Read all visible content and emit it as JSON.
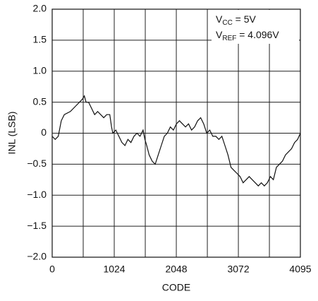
{
  "chart_data": {
    "type": "line",
    "xlabel": "CODE",
    "ylabel": "INL (LSB)",
    "annotations": [
      [
        "V",
        "CC",
        " = 5V"
      ],
      [
        "V",
        "REF",
        " = 4.096V"
      ]
    ],
    "xlim": [
      0,
      4095
    ],
    "ylim": [
      -2,
      2
    ],
    "xticks": [
      0,
      1024,
      2048,
      3072,
      4095
    ],
    "xminorticks": [
      512,
      1536,
      2560,
      3584
    ],
    "yticks": [
      {
        "value": -2,
        "label": "−2.0"
      },
      {
        "value": -1.5,
        "label": "−1.5"
      },
      {
        "value": -1,
        "label": "−1.0"
      },
      {
        "value": -0.5,
        "label": "−0.5"
      },
      0,
      0.5,
      {
        "value": 1,
        "label": "1.0"
      },
      1.5,
      {
        "value": 2,
        "label": "2.0"
      }
    ],
    "grid": true,
    "series": [
      {
        "color": "#111111",
        "x": [
          0,
          50,
          100,
          150,
          200,
          300,
          400,
          500,
          530,
          560,
          600,
          650,
          700,
          750,
          800,
          850,
          900,
          950,
          980,
          1000,
          1050,
          1100,
          1150,
          1200,
          1250,
          1300,
          1350,
          1400,
          1450,
          1500,
          1530,
          1560,
          1600,
          1650,
          1700,
          1750,
          1800,
          1850,
          1900,
          1950,
          2000,
          2050,
          2100,
          2150,
          2200,
          2250,
          2300,
          2350,
          2400,
          2450,
          2500,
          2550,
          2600,
          2650,
          2700,
          2750,
          2800,
          2850,
          2900,
          2950,
          3000,
          3050,
          3100,
          3150,
          3200,
          3250,
          3300,
          3350,
          3400,
          3450,
          3500,
          3550,
          3600,
          3650,
          3700,
          3750,
          3800,
          3850,
          3900,
          3950,
          4000,
          4050,
          4095
        ],
        "values": [
          -0.05,
          -0.1,
          -0.05,
          0.2,
          0.3,
          0.35,
          0.45,
          0.55,
          0.6,
          0.5,
          0.5,
          0.4,
          0.3,
          0.35,
          0.3,
          0.25,
          0.3,
          0.3,
          0.1,
          0.0,
          0.05,
          -0.05,
          -0.15,
          -0.2,
          -0.1,
          -0.15,
          -0.05,
          0.0,
          -0.05,
          0.05,
          -0.1,
          -0.2,
          -0.35,
          -0.45,
          -0.5,
          -0.35,
          -0.2,
          -0.05,
          0.0,
          0.1,
          0.05,
          0.15,
          0.2,
          0.15,
          0.1,
          0.15,
          0.05,
          0.1,
          0.2,
          0.25,
          0.15,
          0.0,
          0.05,
          -0.05,
          -0.05,
          -0.1,
          -0.05,
          -0.2,
          -0.35,
          -0.55,
          -0.6,
          -0.65,
          -0.7,
          -0.8,
          -0.75,
          -0.7,
          -0.75,
          -0.8,
          -0.85,
          -0.8,
          -0.85,
          -0.8,
          -0.7,
          -0.75,
          -0.55,
          -0.5,
          -0.45,
          -0.35,
          -0.3,
          -0.25,
          -0.15,
          -0.1,
          0.0
        ]
      }
    ]
  }
}
